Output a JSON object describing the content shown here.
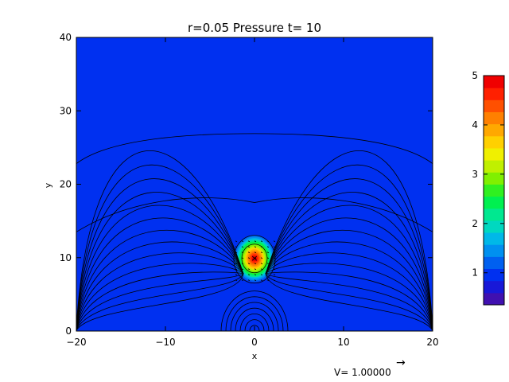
{
  "chart_data": {
    "type": "heatmap",
    "title": "r=0.05 Pressure t= 10",
    "xlabel": "x",
    "ylabel": "y",
    "xlim": [
      -20,
      20
    ],
    "ylim": [
      0,
      40
    ],
    "x_ticks": [
      -20,
      -10,
      0,
      10,
      20
    ],
    "x_tick_labels": [
      "−20",
      "−10",
      "0",
      "10",
      "20"
    ],
    "y_ticks": [
      0,
      10,
      20,
      30,
      40
    ],
    "y_tick_labels": [
      "0",
      "10",
      "20",
      "30",
      "40"
    ],
    "background_value": 0.9,
    "peak": {
      "x": 0,
      "y": 10,
      "value": 5.0
    },
    "colorbar": {
      "range": [
        0.35,
        5.0
      ],
      "ticks": [
        1,
        2,
        3,
        4,
        5
      ],
      "tick_labels": [
        "1",
        "2",
        "3",
        "4",
        "5"
      ],
      "colors": [
        "#4010b0",
        "#1818d8",
        "#0030f0",
        "#0060f0",
        "#0090f0",
        "#00b8e8",
        "#00d8c0",
        "#00e890",
        "#00f050",
        "#30f020",
        "#80f000",
        "#c0f000",
        "#f0f000",
        "#ffd000",
        "#ffa800",
        "#ff8000",
        "#ff5000",
        "#ff2000",
        "#f00000"
      ]
    },
    "velocity_legend": {
      "label": "V= 1.00000",
      "arrow": "→"
    },
    "contour_levels_line_count": 16
  }
}
